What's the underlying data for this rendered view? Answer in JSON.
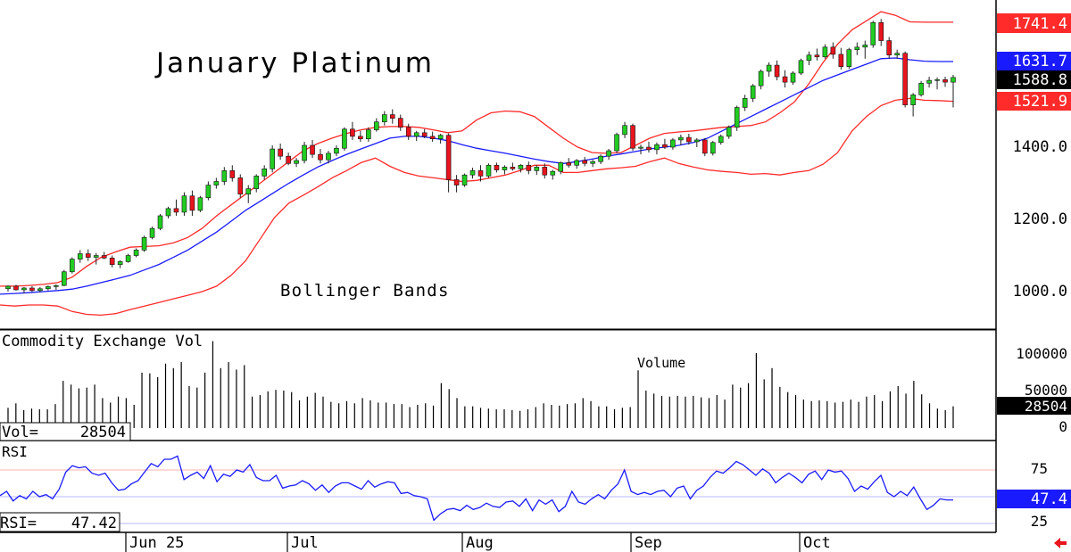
{
  "chart_data": [
    {
      "type": "candlestick",
      "title": "January Platinum",
      "annotation": "Bollinger Bands",
      "ylim": [
        900,
        1780
      ],
      "y_ticks": [
        {
          "value": 1000,
          "label": "1000.0"
        },
        {
          "value": 1200,
          "label": "1200.0"
        },
        {
          "value": 1400,
          "label": "1400.0"
        }
      ],
      "price_tags": [
        {
          "value": 1741.4,
          "label": "1741.4",
          "color": "#ff2a2a"
        },
        {
          "value": 1631.7,
          "label": "1631.7",
          "color": "#1a1aff"
        },
        {
          "value": 1588.8,
          "label": "1588.8",
          "color": "#000000"
        },
        {
          "value": 1521.9,
          "label": "1521.9",
          "color": "#ff2a2a"
        }
      ],
      "candles": [
        [
          1003,
          1012,
          995,
          1010
        ],
        [
          1010,
          1014,
          998,
          1000
        ],
        [
          1000,
          1008,
          990,
          1005
        ],
        [
          1005,
          1010,
          994,
          998
        ],
        [
          998,
          1008,
          993,
          1003
        ],
        [
          1003,
          1012,
          998,
          1009
        ],
        [
          1009,
          1015,
          1000,
          1012
        ],
        [
          1012,
          1055,
          1010,
          1050
        ],
        [
          1050,
          1090,
          1045,
          1085
        ],
        [
          1085,
          1110,
          1075,
          1100
        ],
        [
          1100,
          1112,
          1080,
          1090
        ],
        [
          1090,
          1102,
          1070,
          1095
        ],
        [
          1095,
          1105,
          1085,
          1088
        ],
        [
          1088,
          1095,
          1062,
          1070
        ],
        [
          1070,
          1082,
          1060,
          1078
        ],
        [
          1078,
          1100,
          1075,
          1095
        ],
        [
          1095,
          1115,
          1090,
          1110
        ],
        [
          1110,
          1150,
          1105,
          1145
        ],
        [
          1145,
          1175,
          1140,
          1170
        ],
        [
          1170,
          1210,
          1165,
          1205
        ],
        [
          1205,
          1230,
          1198,
          1225
        ],
        [
          1225,
          1250,
          1205,
          1215
        ],
        [
          1215,
          1270,
          1205,
          1260
        ],
        [
          1260,
          1275,
          1205,
          1220
        ],
        [
          1220,
          1260,
          1215,
          1255
        ],
        [
          1255,
          1300,
          1248,
          1290
        ],
        [
          1290,
          1310,
          1280,
          1300
        ],
        [
          1300,
          1340,
          1290,
          1330
        ],
        [
          1330,
          1345,
          1300,
          1310
        ],
        [
          1310,
          1320,
          1255,
          1265
        ],
        [
          1265,
          1290,
          1240,
          1280
        ],
        [
          1280,
          1320,
          1270,
          1315
        ],
        [
          1315,
          1345,
          1305,
          1335
        ],
        [
          1335,
          1400,
          1325,
          1390
        ],
        [
          1390,
          1405,
          1360,
          1370
        ],
        [
          1370,
          1380,
          1345,
          1350
        ],
        [
          1350,
          1365,
          1340,
          1358
        ],
        [
          1358,
          1410,
          1350,
          1400
        ],
        [
          1400,
          1415,
          1365,
          1375
        ],
        [
          1375,
          1390,
          1350,
          1360
        ],
        [
          1360,
          1385,
          1350,
          1378
        ],
        [
          1378,
          1400,
          1370,
          1392
        ],
        [
          1392,
          1450,
          1385,
          1445
        ],
        [
          1445,
          1465,
          1415,
          1425
        ],
        [
          1425,
          1440,
          1410,
          1418
        ],
        [
          1418,
          1450,
          1410,
          1443
        ],
        [
          1443,
          1475,
          1438,
          1465
        ],
        [
          1465,
          1495,
          1455,
          1485
        ],
        [
          1485,
          1500,
          1460,
          1475
        ],
        [
          1475,
          1485,
          1440,
          1450
        ],
        [
          1450,
          1460,
          1415,
          1425
        ],
        [
          1425,
          1440,
          1412,
          1435
        ],
        [
          1435,
          1445,
          1420,
          1425
        ],
        [
          1425,
          1438,
          1410,
          1418
        ],
        [
          1418,
          1432,
          1405,
          1428
        ],
        [
          1428,
          1433,
          1270,
          1305
        ],
        [
          1305,
          1318,
          1270,
          1290
        ],
        [
          1290,
          1322,
          1285,
          1318
        ],
        [
          1318,
          1338,
          1308,
          1330
        ],
        [
          1330,
          1345,
          1300,
          1315
        ],
        [
          1315,
          1350,
          1310,
          1345
        ],
        [
          1345,
          1352,
          1325,
          1332
        ],
        [
          1332,
          1345,
          1320,
          1340
        ],
        [
          1340,
          1352,
          1330,
          1335
        ],
        [
          1335,
          1348,
          1325,
          1345
        ],
        [
          1345,
          1355,
          1320,
          1330
        ],
        [
          1330,
          1345,
          1318,
          1340
        ],
        [
          1340,
          1350,
          1308,
          1318
        ],
        [
          1318,
          1332,
          1305,
          1328
        ],
        [
          1328,
          1355,
          1320,
          1352
        ],
        [
          1352,
          1365,
          1338,
          1345
        ],
        [
          1345,
          1362,
          1335,
          1358
        ],
        [
          1358,
          1368,
          1342,
          1350
        ],
        [
          1350,
          1360,
          1340,
          1355
        ],
        [
          1355,
          1375,
          1348,
          1370
        ],
        [
          1370,
          1390,
          1360,
          1385
        ],
        [
          1385,
          1435,
          1378,
          1430
        ],
        [
          1430,
          1465,
          1420,
          1455
        ],
        [
          1455,
          1460,
          1385,
          1392
        ],
        [
          1392,
          1402,
          1375,
          1395
        ],
        [
          1395,
          1410,
          1380,
          1388
        ],
        [
          1388,
          1408,
          1375,
          1402
        ],
        [
          1402,
          1418,
          1390,
          1395
        ],
        [
          1395,
          1420,
          1388,
          1415
        ],
        [
          1415,
          1430,
          1400,
          1422
        ],
        [
          1422,
          1432,
          1402,
          1410
        ],
        [
          1410,
          1420,
          1395,
          1415
        ],
        [
          1415,
          1420,
          1370,
          1378
        ],
        [
          1378,
          1412,
          1372,
          1408
        ],
        [
          1408,
          1430,
          1402,
          1425
        ],
        [
          1425,
          1455,
          1418,
          1450
        ],
        [
          1450,
          1510,
          1440,
          1505
        ],
        [
          1505,
          1540,
          1495,
          1530
        ],
        [
          1530,
          1570,
          1520,
          1565
        ],
        [
          1565,
          1610,
          1555,
          1605
        ],
        [
          1605,
          1630,
          1590,
          1622
        ],
        [
          1622,
          1635,
          1580,
          1590
        ],
        [
          1590,
          1608,
          1560,
          1575
        ],
        [
          1575,
          1605,
          1568,
          1600
        ],
        [
          1600,
          1640,
          1595,
          1635
        ],
        [
          1635,
          1660,
          1622,
          1650
        ],
        [
          1650,
          1668,
          1635,
          1645
        ],
        [
          1645,
          1680,
          1640,
          1672
        ],
        [
          1672,
          1685,
          1640,
          1652
        ],
        [
          1652,
          1670,
          1610,
          1618
        ],
        [
          1618,
          1670,
          1612,
          1665
        ],
        [
          1665,
          1685,
          1650,
          1672
        ],
        [
          1672,
          1690,
          1640,
          1678
        ],
        [
          1678,
          1745,
          1670,
          1740
        ],
        [
          1740,
          1750,
          1675,
          1690
        ],
        [
          1690,
          1700,
          1640,
          1650
        ],
        [
          1650,
          1665,
          1640,
          1655
        ],
        [
          1655,
          1660,
          1505,
          1512
        ],
        [
          1512,
          1545,
          1480,
          1540
        ],
        [
          1540,
          1578,
          1535,
          1572
        ],
        [
          1572,
          1590,
          1560,
          1580
        ],
        [
          1580,
          1588,
          1555,
          1582
        ],
        [
          1582,
          1590,
          1562,
          1575
        ],
        [
          1575,
          1595,
          1505,
          1588
        ]
      ],
      "bands": {
        "upper": [
          1010,
          1010,
          1012,
          1015,
          1020,
          1035,
          1065,
          1090,
          1105,
          1118,
          1120,
          1122,
          1130,
          1145,
          1170,
          1205,
          1235,
          1265,
          1295,
          1325,
          1355,
          1385,
          1405,
          1420,
          1433,
          1443,
          1450,
          1452,
          1452,
          1450,
          1443,
          1435,
          1440,
          1470,
          1490,
          1495,
          1493,
          1480,
          1450,
          1420,
          1395,
          1380,
          1378,
          1380,
          1400,
          1420,
          1433,
          1437,
          1440,
          1445,
          1450,
          1452,
          1455,
          1465,
          1490,
          1520,
          1570,
          1630,
          1680,
          1720,
          1745,
          1770,
          1760,
          1742,
          1741,
          1741,
          1741
        ],
        "middle": [
          988,
          990,
          992,
          995,
          998,
          1002,
          1010,
          1020,
          1030,
          1040,
          1055,
          1070,
          1090,
          1110,
          1135,
          1160,
          1190,
          1220,
          1245,
          1270,
          1295,
          1318,
          1340,
          1358,
          1375,
          1390,
          1405,
          1420,
          1425,
          1425,
          1420,
          1413,
          1402,
          1392,
          1385,
          1378,
          1370,
          1362,
          1355,
          1350,
          1355,
          1362,
          1370,
          1376,
          1383,
          1390,
          1395,
          1400,
          1408,
          1420,
          1440,
          1460,
          1480,
          1500,
          1520,
          1540,
          1560,
          1580,
          1595,
          1610,
          1625,
          1640,
          1642,
          1637,
          1633,
          1632,
          1632
        ],
        "lower": [
          958,
          955,
          958,
          958,
          955,
          940,
          932,
          930,
          934,
          945,
          955,
          965,
          975,
          985,
          995,
          1010,
          1040,
          1080,
          1140,
          1200,
          1240,
          1262,
          1285,
          1310,
          1330,
          1352,
          1365,
          1342,
          1325,
          1315,
          1310,
          1305,
          1300,
          1303,
          1310,
          1318,
          1330,
          1345,
          1345,
          1325,
          1325,
          1330,
          1335,
          1338,
          1342,
          1355,
          1365,
          1350,
          1340,
          1332,
          1328,
          1325,
          1320,
          1322,
          1318,
          1325,
          1330,
          1348,
          1380,
          1440,
          1480,
          1510,
          1525,
          1530,
          1525,
          1524,
          1522
        ]
      }
    },
    {
      "type": "bar",
      "title": "Commodity Exchange Vol",
      "annotation": "Volume",
      "y_ticks": [
        {
          "value": 100000,
          "label": "100000"
        },
        {
          "value": 50000,
          "label": "50000"
        },
        {
          "value": 0,
          "label": "0"
        }
      ],
      "readout": {
        "label": "Vol=",
        "value": "28504"
      },
      "last_tag": "28504",
      "values": [
        27000,
        33000,
        24000,
        26000,
        25000,
        25000,
        32000,
        63000,
        58000,
        53000,
        54000,
        58000,
        40000,
        34000,
        42000,
        40000,
        31000,
        74000,
        73000,
        68000,
        86000,
        80000,
        88000,
        56000,
        54000,
        74000,
        116000,
        80000,
        88000,
        78000,
        84000,
        42000,
        44000,
        49000,
        51000,
        50000,
        48000,
        37000,
        42000,
        47000,
        42000,
        35000,
        33000,
        36000,
        33000,
        40000,
        37000,
        34000,
        34000,
        32000,
        32000,
        28000,
        31000,
        33000,
        30000,
        60000,
        52000,
        40000,
        29000,
        29000,
        27000,
        26000,
        25000,
        25000,
        24000,
        23000,
        25000,
        28000,
        33000,
        31000,
        30000,
        32000,
        33000,
        40000,
        36000,
        29000,
        29000,
        25000,
        27000,
        28000,
        77000,
        50000,
        46000,
        43000,
        42000,
        43000,
        42000,
        43000,
        41000,
        40000,
        44000,
        38000,
        58000,
        54000,
        60000,
        100000,
        65000,
        80000,
        55000,
        48000,
        44000,
        38000,
        36000,
        37000,
        36000,
        34000,
        35000,
        38000,
        35000,
        42000,
        44000,
        36000,
        49000,
        56000,
        46000,
        63000,
        45000,
        33000,
        26000,
        24000,
        29000
      ]
    },
    {
      "type": "line",
      "title": "RSI",
      "y_ticks": [
        {
          "value": 75,
          "label": "75"
        },
        {
          "value": 25,
          "label": "25"
        }
      ],
      "reference_lines": [
        75,
        50,
        25
      ],
      "readout": {
        "label": "RSI=",
        "value": "47.42"
      },
      "last_tag": "47.4",
      "values": [
        51,
        55,
        46,
        51,
        48,
        55,
        50,
        52,
        48,
        57,
        73,
        79,
        77,
        78,
        72,
        70,
        72,
        63,
        56,
        57,
        62,
        65,
        73,
        81,
        78,
        85,
        85,
        88,
        66,
        70,
        73,
        67,
        79,
        64,
        71,
        69,
        75,
        73,
        80,
        68,
        65,
        65,
        70,
        58,
        60,
        61,
        65,
        62,
        56,
        61,
        54,
        60,
        63,
        63,
        60,
        57,
        65,
        59,
        62,
        64,
        63,
        53,
        54,
        51,
        50,
        48,
        28,
        34,
        38,
        39,
        37,
        42,
        38,
        40,
        44,
        41,
        40,
        45,
        46,
        41,
        48,
        37,
        47,
        43,
        47,
        36,
        41,
        55,
        45,
        43,
        48,
        52,
        48,
        56,
        62,
        75,
        55,
        52,
        54,
        52,
        55,
        56,
        50,
        58,
        60,
        48,
        56,
        60,
        68,
        74,
        72,
        77,
        83,
        80,
        75,
        70,
        76,
        72,
        63,
        68,
        72,
        68,
        63,
        71,
        74,
        66,
        75,
        73,
        74,
        67,
        55,
        60,
        57,
        64,
        70,
        54,
        50,
        55,
        51,
        59,
        48,
        38,
        42,
        48,
        47,
        47
      ]
    }
  ],
  "x_axis": {
    "ticks": [
      "Jun 25",
      "Jul",
      "Aug",
      "Sep",
      "Oct"
    ]
  },
  "colors": {
    "up": "#22cc22",
    "down": "#e8141e",
    "band": "#ff2a2a",
    "middle": "#1a1aff",
    "rsi": "#1a1aff",
    "ref_red": "#ffb0b0",
    "ref_blue": "#b8b8ff"
  },
  "icons": {
    "back_arrow": "left-arrow-icon"
  }
}
